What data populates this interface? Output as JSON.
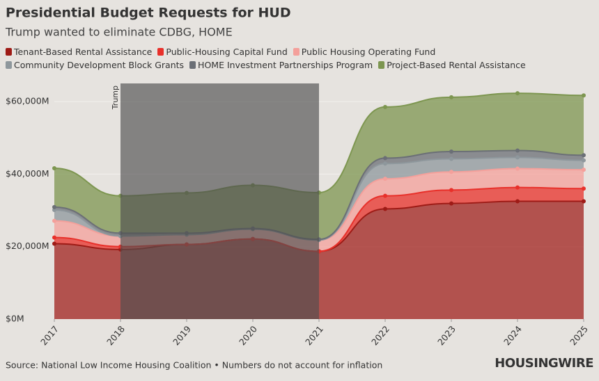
{
  "chart_data": {
    "type": "stacked-area",
    "title": "Presidential Budget Requests for HUD",
    "subtitle": "Trump wanted to eliminate CDBG, HOME",
    "source": "Source: National Low Income Housing Coalition • Numbers do not account for inflation",
    "brand": "HOUSINGWIRE",
    "x": [
      2017,
      2018,
      2019,
      2020,
      2021,
      2022,
      2023,
      2024,
      2025
    ],
    "xticks": [
      2017,
      2018,
      2019,
      2020,
      2021,
      2022,
      2023,
      2024,
      2025
    ],
    "xlim": [
      2017,
      2025
    ],
    "ylim": [
      0,
      65000
    ],
    "yticks": [
      {
        "value": 0,
        "label": "$0M"
      },
      {
        "value": 20000,
        "label": "$20,000M"
      },
      {
        "value": 40000,
        "label": "$40,000M"
      },
      {
        "value": 60000,
        "label": "$60,000M"
      }
    ],
    "grid": true,
    "highlight": {
      "label": "Trump",
      "start": 2018,
      "end": 2021
    },
    "series": [
      {
        "name": "Tenant-Based Rental Assistance",
        "color": "#9e1b16",
        "values": [
          20800,
          19200,
          20600,
          22100,
          18700,
          30400,
          31900,
          32500,
          32500
        ]
      },
      {
        "name": "Public-Housing Capital Fund",
        "color": "#e8302a",
        "values": [
          1700,
          800,
          0,
          0,
          0,
          3600,
          3700,
          3800,
          3500
        ]
      },
      {
        "name": "Public Housing Operating Fund",
        "color": "#f4a09b",
        "values": [
          4600,
          2900,
          2700,
          2700,
          3100,
          4700,
          5000,
          5200,
          5200
        ]
      },
      {
        "name": "Community Development Block Grants",
        "color": "#8e979c",
        "values": [
          3000,
          0,
          0,
          0,
          0,
          4200,
          3600,
          3100,
          2600
        ]
      },
      {
        "name": "HOME Investment Partnerships Program",
        "color": "#6b6f76",
        "values": [
          800,
          800,
          400,
          200,
          200,
          1500,
          2000,
          1900,
          1400
        ]
      },
      {
        "name": "Project-Based Rental Assistance",
        "color": "#7d9650",
        "values": [
          10700,
          10300,
          11100,
          11900,
          12900,
          14100,
          15000,
          15800,
          16500
        ]
      }
    ]
  }
}
